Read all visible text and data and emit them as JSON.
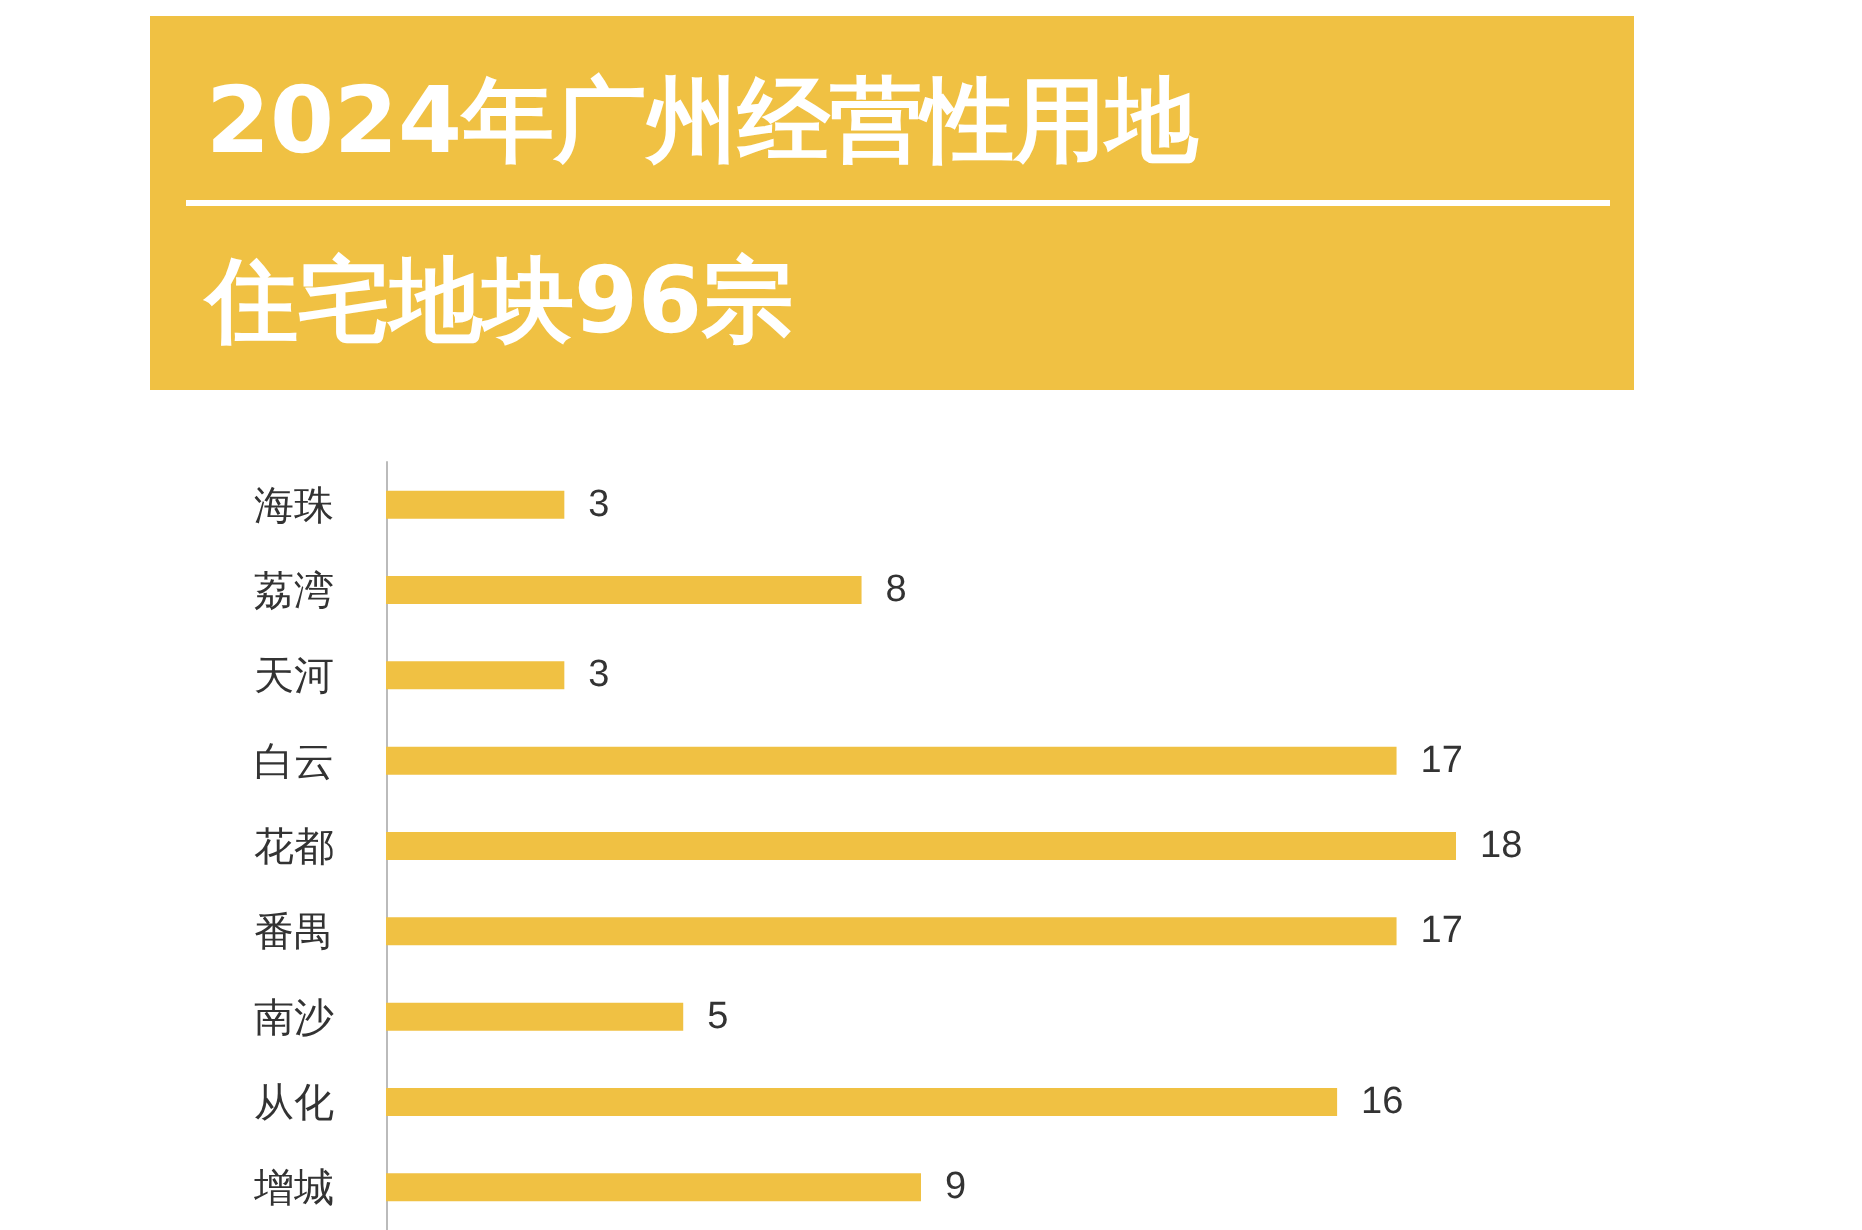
{
  "chart_data": {
    "type": "bar",
    "orientation": "horizontal",
    "title": "2024年广州经营性用地",
    "subtitle": "住宅地块96宗",
    "categories": [
      "海珠",
      "荔湾",
      "天河",
      "白云",
      "花都",
      "番禺",
      "南沙",
      "从化",
      "增城"
    ],
    "values": [
      3,
      8,
      3,
      17,
      18,
      17,
      5,
      16,
      9
    ],
    "color": "#f0c143",
    "data_labels": true
  }
}
